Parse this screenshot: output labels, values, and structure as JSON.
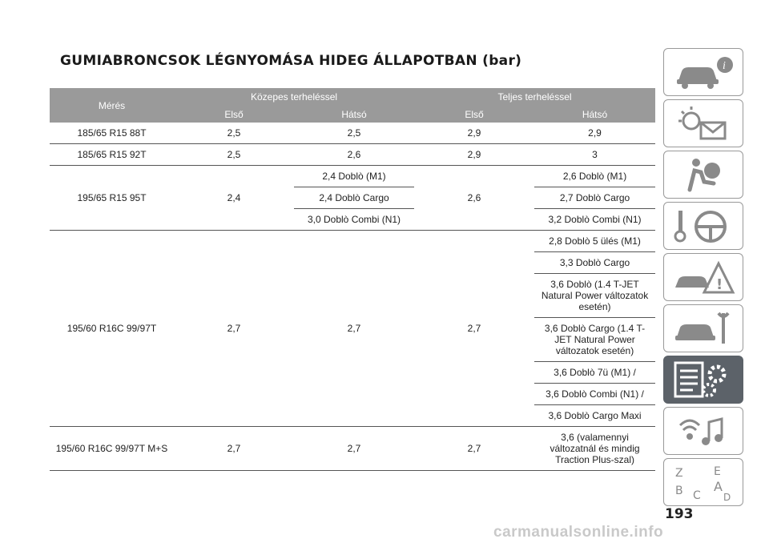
{
  "title": "GUMIABRONCSOK LÉGNYOMÁSA HIDEG ÁLLAPOTBAN (bar)",
  "header": {
    "meres": "Mérés",
    "kozepes": "Közepes terheléssel",
    "teljes": "Teljes terheléssel",
    "elso1": "Első",
    "hatso1": "Hátsó",
    "elso2": "Első",
    "hatso2": "Hátsó"
  },
  "rows": [
    {
      "meres": "185/65 R15 88T",
      "k_elso": "2,5",
      "k_hatso": "2,5",
      "t_elso": "2,9",
      "t_hatso": "2,9"
    },
    {
      "meres": "185/65 R15 92T",
      "k_elso": "2,5",
      "k_hatso": "2,6",
      "t_elso": "2,9",
      "t_hatso": "3"
    },
    {
      "meres": "195/65 R15 95T",
      "k_elso": "2,4",
      "k_hatso": [
        "2,4 Doblò (M1)",
        "2,4 Doblò Cargo",
        "3,0 Doblò Combi (N1)"
      ],
      "t_elso": "2,6",
      "t_hatso": [
        "2,6 Doblò (M1)",
        "2,7 Doblò Cargo",
        "3,2 Doblò Combi (N1)"
      ]
    },
    {
      "meres": "195/60 R16C 99/97T",
      "k_elso": "2,7",
      "k_hatso": "2,7",
      "t_elso": "2,7",
      "t_hatso": [
        "2,8 Doblò 5 ülés (M1)",
        "3,3 Doblò Cargo",
        "3,6 Doblò (1.4 T-JET Natural Power változatok esetén)",
        "3,6 Doblò Cargo (1.4 T-JET Natural Power változatok esetén)",
        "3,6 Doblò 7ü (M1) /",
        "3,6 Doblò Combi (N1) /",
        "3,6 Doblò Cargo Maxi"
      ]
    },
    {
      "meres": "195/60 R16C 99/97T M+S",
      "k_elso": "2,7",
      "k_hatso": "2,7",
      "t_elso": "2,7",
      "t_hatso": "3,6 (valamennyi változatnál és mindig Traction Plus-szal)"
    }
  ],
  "page_number": "193",
  "watermark": "carmanualsonline.info",
  "sidebar": {
    "items": [
      "car-info-icon",
      "warning-lights-icon",
      "airbag-icon",
      "steering-key-icon",
      "emergency-icon",
      "maintenance-icon",
      "technical-data-icon",
      "multimedia-icon",
      "index-icon"
    ],
    "active_index": 6,
    "active_color": "#5c6269"
  }
}
